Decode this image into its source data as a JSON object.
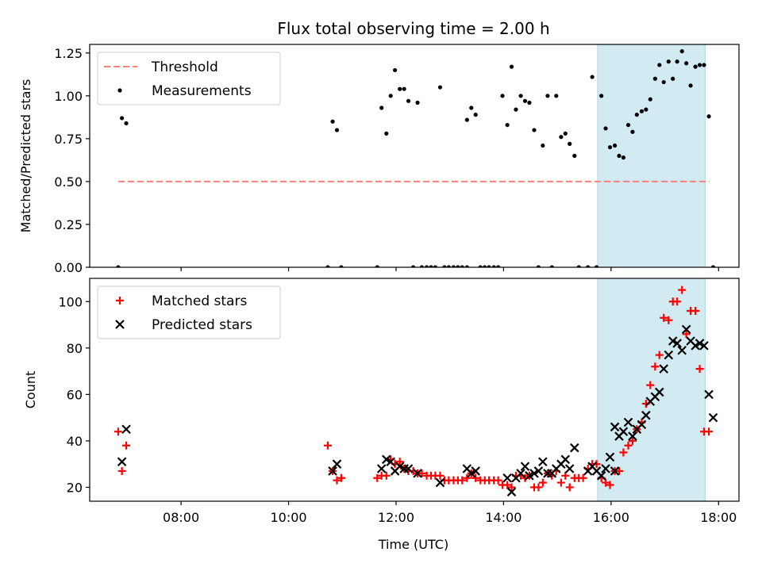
{
  "chart_data": {
    "type": "scatter",
    "title": "Flux total observing time = 2.00 h",
    "xlabel": "Time (UTC)",
    "x_ticks": [
      "08:00",
      "10:00",
      "12:00",
      "14:00",
      "16:00",
      "18:00"
    ],
    "x_tick_hours": [
      8,
      10,
      12,
      14,
      16,
      18
    ],
    "xlim_hours": [
      6.3,
      18.38
    ],
    "highlight_span_hours": [
      15.75,
      17.75
    ],
    "highlight_color": "#add8e6",
    "panels": [
      {
        "ylabel": "Matched/Predicted stars",
        "ylim": [
          0,
          1.3
        ],
        "yticks": [
          "0.00",
          "0.25",
          "0.50",
          "0.75",
          "1.00",
          "1.25"
        ],
        "ytick_values": [
          0,
          0.25,
          0.5,
          0.75,
          1.0,
          1.25
        ],
        "legend_position": "upper-left",
        "threshold": {
          "name": "Threshold",
          "value": 0.5,
          "x_start": 6.83,
          "x_end": 17.83,
          "color": "#ff7f7f"
        },
        "series": [
          {
            "name": "Measurements",
            "marker": "dot",
            "color": "#000000",
            "points": [
              [
                6.83,
                0.0
              ],
              [
                6.9,
                0.87
              ],
              [
                6.98,
                0.84
              ],
              [
                10.73,
                0.0
              ],
              [
                10.82,
                0.85
              ],
              [
                10.9,
                0.8
              ],
              [
                10.98,
                0.0
              ],
              [
                11.65,
                0.0
              ],
              [
                11.73,
                0.93
              ],
              [
                11.82,
                0.78
              ],
              [
                11.9,
                1.0
              ],
              [
                11.98,
                1.15
              ],
              [
                12.07,
                1.04
              ],
              [
                12.15,
                1.04
              ],
              [
                12.23,
                0.97
              ],
              [
                12.32,
                0.0
              ],
              [
                12.4,
                0.96
              ],
              [
                12.48,
                0.0
              ],
              [
                12.57,
                0.0
              ],
              [
                12.65,
                0.0
              ],
              [
                12.73,
                0.0
              ],
              [
                12.82,
                1.05
              ],
              [
                12.9,
                0.0
              ],
              [
                12.98,
                0.0
              ],
              [
                13.07,
                0.0
              ],
              [
                13.15,
                0.0
              ],
              [
                13.23,
                0.0
              ],
              [
                13.32,
                0.0
              ],
              [
                13.32,
                0.86
              ],
              [
                13.4,
                0.93
              ],
              [
                13.48,
                0.89
              ],
              [
                13.57,
                0.0
              ],
              [
                13.65,
                0.0
              ],
              [
                13.73,
                0.0
              ],
              [
                13.82,
                0.0
              ],
              [
                13.9,
                0.0
              ],
              [
                13.98,
                1.0
              ],
              [
                14.07,
                0.83
              ],
              [
                14.15,
                1.17
              ],
              [
                14.23,
                0.92
              ],
              [
                14.32,
                1.0
              ],
              [
                14.4,
                0.97
              ],
              [
                14.48,
                0.96
              ],
              [
                14.57,
                0.8
              ],
              [
                14.65,
                0.0
              ],
              [
                14.73,
                0.71
              ],
              [
                14.82,
                1.0
              ],
              [
                14.9,
                0.0
              ],
              [
                14.98,
                1.0
              ],
              [
                15.07,
                0.76
              ],
              [
                15.15,
                0.78
              ],
              [
                15.23,
                0.72
              ],
              [
                15.32,
                0.65
              ],
              [
                15.4,
                0.0
              ],
              [
                15.57,
                0.0
              ],
              [
                15.65,
                1.11
              ],
              [
                15.73,
                0.0
              ],
              [
                15.82,
                1.0
              ],
              [
                15.9,
                0.81
              ],
              [
                15.98,
                0.7
              ],
              [
                16.07,
                0.71
              ],
              [
                16.15,
                0.65
              ],
              [
                16.23,
                0.64
              ],
              [
                16.32,
                0.83
              ],
              [
                16.4,
                0.79
              ],
              [
                16.48,
                0.89
              ],
              [
                16.57,
                0.91
              ],
              [
                16.65,
                0.92
              ],
              [
                16.73,
                0.98
              ],
              [
                16.82,
                1.1
              ],
              [
                16.9,
                1.18
              ],
              [
                16.98,
                1.08
              ],
              [
                17.07,
                1.2
              ],
              [
                17.15,
                1.1
              ],
              [
                17.23,
                1.2
              ],
              [
                17.32,
                1.26
              ],
              [
                17.4,
                1.19
              ],
              [
                17.48,
                1.06
              ],
              [
                17.57,
                1.17
              ],
              [
                17.65,
                1.18
              ],
              [
                17.73,
                1.18
              ],
              [
                17.82,
                0.88
              ],
              [
                17.9,
                0.0
              ]
            ]
          }
        ]
      },
      {
        "ylabel": "Count",
        "ylim": [
          14,
          110
        ],
        "yticks": [
          "20",
          "40",
          "60",
          "80",
          "100"
        ],
        "ytick_values": [
          20,
          40,
          60,
          80,
          100
        ],
        "legend_position": "upper-left",
        "series": [
          {
            "name": "Matched stars",
            "marker": "plus",
            "color": "#ff0000",
            "points": [
              [
                6.83,
                44
              ],
              [
                6.9,
                27
              ],
              [
                6.98,
                38
              ],
              [
                10.73,
                38
              ],
              [
                10.82,
                27
              ],
              [
                10.9,
                23
              ],
              [
                10.98,
                24
              ],
              [
                11.65,
                24
              ],
              [
                11.73,
                25
              ],
              [
                11.82,
                25
              ],
              [
                11.9,
                32
              ],
              [
                11.98,
                30
              ],
              [
                12.07,
                31
              ],
              [
                12.15,
                28
              ],
              [
                12.23,
                27
              ],
              [
                12.32,
                27
              ],
              [
                12.4,
                26
              ],
              [
                12.48,
                26
              ],
              [
                12.57,
                25
              ],
              [
                12.65,
                25
              ],
              [
                12.73,
                25
              ],
              [
                12.82,
                25
              ],
              [
                12.9,
                23
              ],
              [
                12.98,
                23
              ],
              [
                13.07,
                23
              ],
              [
                13.15,
                23
              ],
              [
                13.23,
                23
              ],
              [
                13.32,
                24
              ],
              [
                13.4,
                26
              ],
              [
                13.48,
                24
              ],
              [
                13.57,
                23
              ],
              [
                13.65,
                23
              ],
              [
                13.73,
                23
              ],
              [
                13.82,
                23
              ],
              [
                13.9,
                23
              ],
              [
                13.98,
                21
              ],
              [
                14.07,
                21
              ],
              [
                14.15,
                20
              ],
              [
                14.23,
                25
              ],
              [
                14.32,
                25
              ],
              [
                14.4,
                24
              ],
              [
                14.48,
                25
              ],
              [
                14.57,
                20
              ],
              [
                14.65,
                20
              ],
              [
                14.73,
                22
              ],
              [
                14.82,
                26
              ],
              [
                14.9,
                25
              ],
              [
                14.98,
                27
              ],
              [
                15.07,
                22
              ],
              [
                15.15,
                25
              ],
              [
                15.23,
                20
              ],
              [
                15.32,
                24
              ],
              [
                15.4,
                24
              ],
              [
                15.48,
                24
              ],
              [
                15.57,
                28
              ],
              [
                15.65,
                30
              ],
              [
                15.73,
                30
              ],
              [
                15.82,
                24
              ],
              [
                15.9,
                22
              ],
              [
                15.98,
                21
              ],
              [
                16.07,
                27
              ],
              [
                16.15,
                27
              ],
              [
                16.23,
                35
              ],
              [
                16.32,
                38
              ],
              [
                16.4,
                40
              ],
              [
                16.48,
                45
              ],
              [
                16.57,
                48
              ],
              [
                16.65,
                56
              ],
              [
                16.73,
                64
              ],
              [
                16.82,
                72
              ],
              [
                16.9,
                77
              ],
              [
                16.98,
                93
              ],
              [
                17.07,
                92
              ],
              [
                17.15,
                100
              ],
              [
                17.23,
                100
              ],
              [
                17.32,
                105
              ],
              [
                17.4,
                86
              ],
              [
                17.48,
                96
              ],
              [
                17.57,
                96
              ],
              [
                17.65,
                71
              ],
              [
                17.73,
                44
              ],
              [
                17.82,
                44
              ]
            ]
          },
          {
            "name": "Predicted stars",
            "marker": "x",
            "color": "#000000",
            "points": [
              [
                6.9,
                31
              ],
              [
                6.98,
                45
              ],
              [
                10.82,
                27
              ],
              [
                10.9,
                30
              ],
              [
                11.73,
                28
              ],
              [
                11.82,
                32
              ],
              [
                11.9,
                31
              ],
              [
                11.98,
                27
              ],
              [
                12.07,
                29
              ],
              [
                12.15,
                28
              ],
              [
                12.23,
                28
              ],
              [
                12.4,
                26
              ],
              [
                12.82,
                22
              ],
              [
                13.32,
                28
              ],
              [
                13.4,
                26
              ],
              [
                13.48,
                27
              ],
              [
                14.07,
                24
              ],
              [
                14.15,
                18
              ],
              [
                14.23,
                24
              ],
              [
                14.32,
                26
              ],
              [
                14.4,
                29
              ],
              [
                14.48,
                25
              ],
              [
                14.57,
                26
              ],
              [
                14.65,
                27
              ],
              [
                14.73,
                31
              ],
              [
                14.82,
                26
              ],
              [
                14.9,
                26
              ],
              [
                14.98,
                28
              ],
              [
                15.07,
                30
              ],
              [
                15.15,
                32
              ],
              [
                15.23,
                28
              ],
              [
                15.32,
                37
              ],
              [
                15.57,
                27
              ],
              [
                15.65,
                29
              ],
              [
                15.73,
                27
              ],
              [
                15.82,
                25
              ],
              [
                15.9,
                28
              ],
              [
                15.98,
                33
              ],
              [
                16.07,
                27
              ],
              [
                16.07,
                46
              ],
              [
                16.15,
                42
              ],
              [
                16.23,
                44
              ],
              [
                16.32,
                48
              ],
              [
                16.4,
                42
              ],
              [
                16.48,
                45
              ],
              [
                16.57,
                47
              ],
              [
                16.65,
                51
              ],
              [
                16.73,
                57
              ],
              [
                16.82,
                59
              ],
              [
                16.9,
                61
              ],
              [
                16.98,
                71
              ],
              [
                17.07,
                77
              ],
              [
                17.15,
                83
              ],
              [
                17.23,
                82
              ],
              [
                17.32,
                79
              ],
              [
                17.4,
                88
              ],
              [
                17.48,
                83
              ],
              [
                17.57,
                81
              ],
              [
                17.65,
                82
              ],
              [
                17.73,
                81
              ],
              [
                17.82,
                60
              ],
              [
                17.9,
                50
              ]
            ]
          }
        ]
      }
    ]
  }
}
